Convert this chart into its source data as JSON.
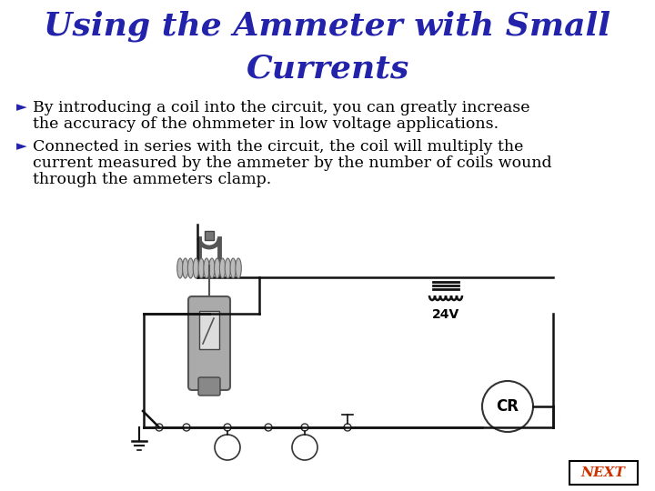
{
  "title_line1": "Using the Ammeter with Small",
  "title_line2": "Currents",
  "title_color": "#2222AA",
  "title_fontsize": 26,
  "bullet1_arrow": "Ø",
  "bullet1_line1": " By introducing a coil into the circuit, you can greatly increase",
  "bullet1_line2": "   the accuracy of the ohmmeter in low voltage applications.",
  "bullet2_line1": " Connected in series with the circuit, the coil will multiply the",
  "bullet2_line2": "   current measured by the ammeter by the number of coils wound",
  "bullet2_line3": "   through the ammeters clamp.",
  "bullet_color": "#000000",
  "bullet_fontsize": 12.5,
  "bg_color": "#FFFFFF",
  "next_text": "NEXT",
  "next_color": "#CC3300",
  "next_border_color": "#000000",
  "circuit_color": "#111111",
  "ammeter_body_color": "#AAAAAA",
  "ammeter_display_color": "#DDDDDD"
}
